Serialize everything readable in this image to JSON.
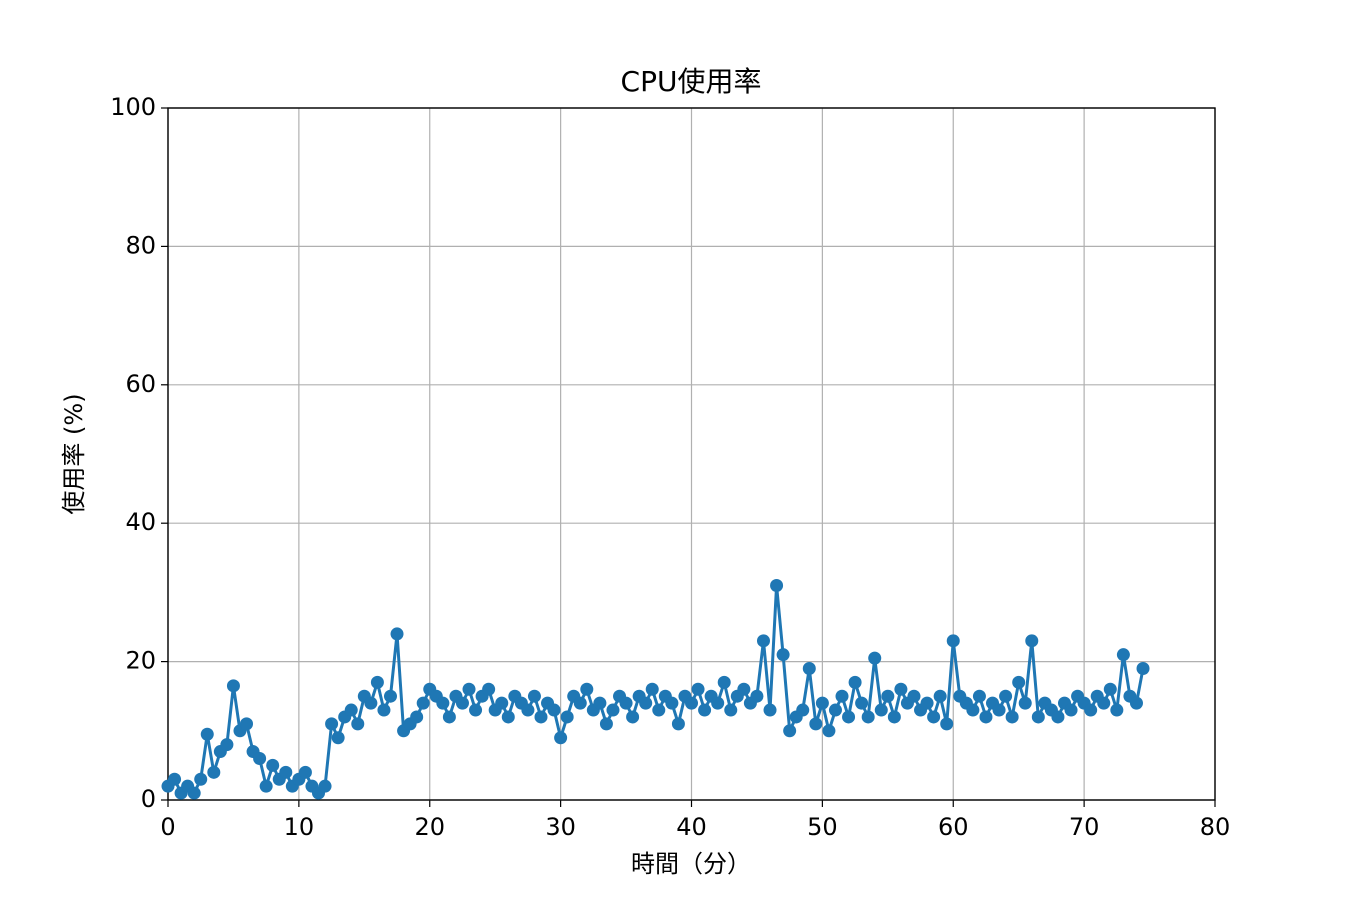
{
  "chart_data": {
    "type": "line",
    "title": "CPU使用率",
    "x_label": "時間（分）",
    "y_label": "使用率 (%)",
    "xlim": [
      0,
      80
    ],
    "ylim": [
      0,
      100
    ],
    "xticks": [
      0,
      10,
      20,
      30,
      40,
      50,
      60,
      70,
      80
    ],
    "yticks": [
      0,
      20,
      40,
      60,
      80,
      100
    ],
    "grid": true,
    "x": [
      0,
      0.5,
      1,
      1.5,
      2,
      2.5,
      3,
      3.5,
      4,
      4.5,
      5,
      5.5,
      6,
      6.5,
      7,
      7.5,
      8,
      8.5,
      9,
      9.5,
      10,
      10.5,
      11,
      11.5,
      12,
      12.5,
      13,
      13.5,
      14,
      14.5,
      15,
      15.5,
      16,
      16.5,
      17,
      17.5,
      18,
      18.5,
      19,
      19.5,
      20,
      20.5,
      21,
      21.5,
      22,
      22.5,
      23,
      23.5,
      24,
      24.5,
      25,
      25.5,
      26,
      26.5,
      27,
      27.5,
      28,
      28.5,
      29,
      29.5,
      30,
      30.5,
      31,
      31.5,
      32,
      32.5,
      33,
      33.5,
      34,
      34.5,
      35,
      35.5,
      36,
      36.5,
      37,
      37.5,
      38,
      38.5,
      39,
      39.5,
      40,
      40.5,
      41,
      41.5,
      42,
      42.5,
      43,
      43.5,
      44,
      44.5,
      45,
      45.5,
      46,
      46.5,
      47,
      47.5,
      48,
      48.5,
      49,
      49.5,
      50,
      50.5,
      51,
      51.5,
      52,
      52.5,
      53,
      53.5,
      54,
      54.5,
      55,
      55.5,
      56,
      56.5,
      57,
      57.5,
      58,
      58.5,
      59,
      59.5,
      60,
      60.5,
      61,
      61.5,
      62,
      62.5,
      63,
      63.5,
      64,
      64.5,
      65,
      65.5,
      66,
      66.5,
      67,
      67.5,
      68,
      68.5,
      69,
      69.5,
      70,
      70.5,
      71,
      71.5,
      72,
      72.5,
      73,
      73.5,
      74,
      74.5
    ],
    "series": [
      {
        "name": "CPU使用率",
        "color": "#1f77b4",
        "values": [
          2,
          3,
          1,
          2,
          1,
          3,
          9.5,
          4,
          7,
          8,
          16.5,
          10,
          11,
          7,
          6,
          2,
          5,
          3,
          4,
          2,
          3,
          4,
          2,
          1,
          2,
          11,
          9,
          12,
          13,
          11,
          15,
          14,
          17,
          13,
          15,
          24,
          10,
          11,
          12,
          14,
          16,
          15,
          14,
          12,
          15,
          14,
          16,
          13,
          15,
          16,
          13,
          14,
          12,
          15,
          14,
          13,
          15,
          12,
          14,
          13,
          9,
          12,
          15,
          14,
          16,
          13,
          14,
          11,
          13,
          15,
          14,
          12,
          15,
          14,
          16,
          13,
          15,
          14,
          11,
          15,
          14,
          16,
          13,
          15,
          14,
          17,
          13,
          15,
          16,
          14,
          15,
          23,
          13,
          31,
          21,
          10,
          12,
          13,
          19,
          11,
          14,
          10,
          13,
          15,
          12,
          17,
          14,
          12,
          20.5,
          13,
          15,
          12,
          16,
          14,
          15,
          13,
          14,
          12,
          15,
          11,
          23,
          15,
          14,
          13,
          15,
          12,
          14,
          13,
          15,
          12,
          17,
          14,
          23,
          12,
          14,
          13,
          12,
          14,
          13,
          15,
          14,
          13,
          15,
          14,
          16,
          13,
          21,
          15,
          14,
          19
        ]
      }
    ]
  }
}
